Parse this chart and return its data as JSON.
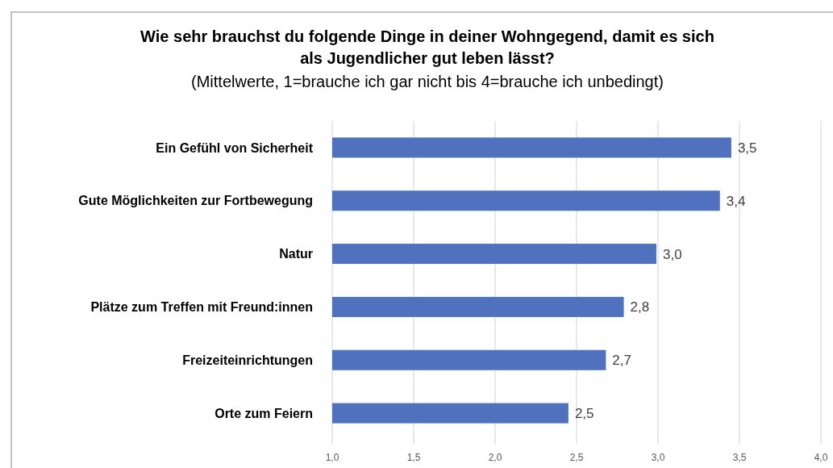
{
  "chart_data": {
    "type": "bar",
    "orientation": "horizontal",
    "title": "Wie sehr brauchst du folgende Dinge in deiner Wohngegend, damit es sich\nals Jugendlicher gut leben lässt?",
    "subtitle": "(Mittelwerte, 1=brauche ich gar nicht bis 4=brauche ich unbedingt)",
    "categories": [
      "Ein Gefühl von Sicherheit",
      "Gute Möglichkeiten zur Fortbewegung",
      "Natur",
      "Plätze zum Treffen mit Freund:innen",
      "Freizeiteinrichtungen",
      "Orte zum Feiern"
    ],
    "values": [
      3.45,
      3.38,
      2.99,
      2.79,
      2.68,
      2.45
    ],
    "value_labels": [
      "3,5",
      "3,4",
      "3,0",
      "2,8",
      "2,7",
      "2,5"
    ],
    "color": "#4f71be",
    "xlim": [
      1,
      4
    ],
    "xticks": [
      {
        "value": 1,
        "label": "1,0"
      },
      {
        "value": 1.5,
        "label": "1,5"
      },
      {
        "value": 2,
        "label": "2,0"
      },
      {
        "value": 2.5,
        "label": "2,5"
      },
      {
        "value": 3,
        "label": "3,0"
      },
      {
        "value": 3.5,
        "label": "3,5"
      },
      {
        "value": 4,
        "label": "4,0"
      }
    ],
    "grid": "x"
  }
}
